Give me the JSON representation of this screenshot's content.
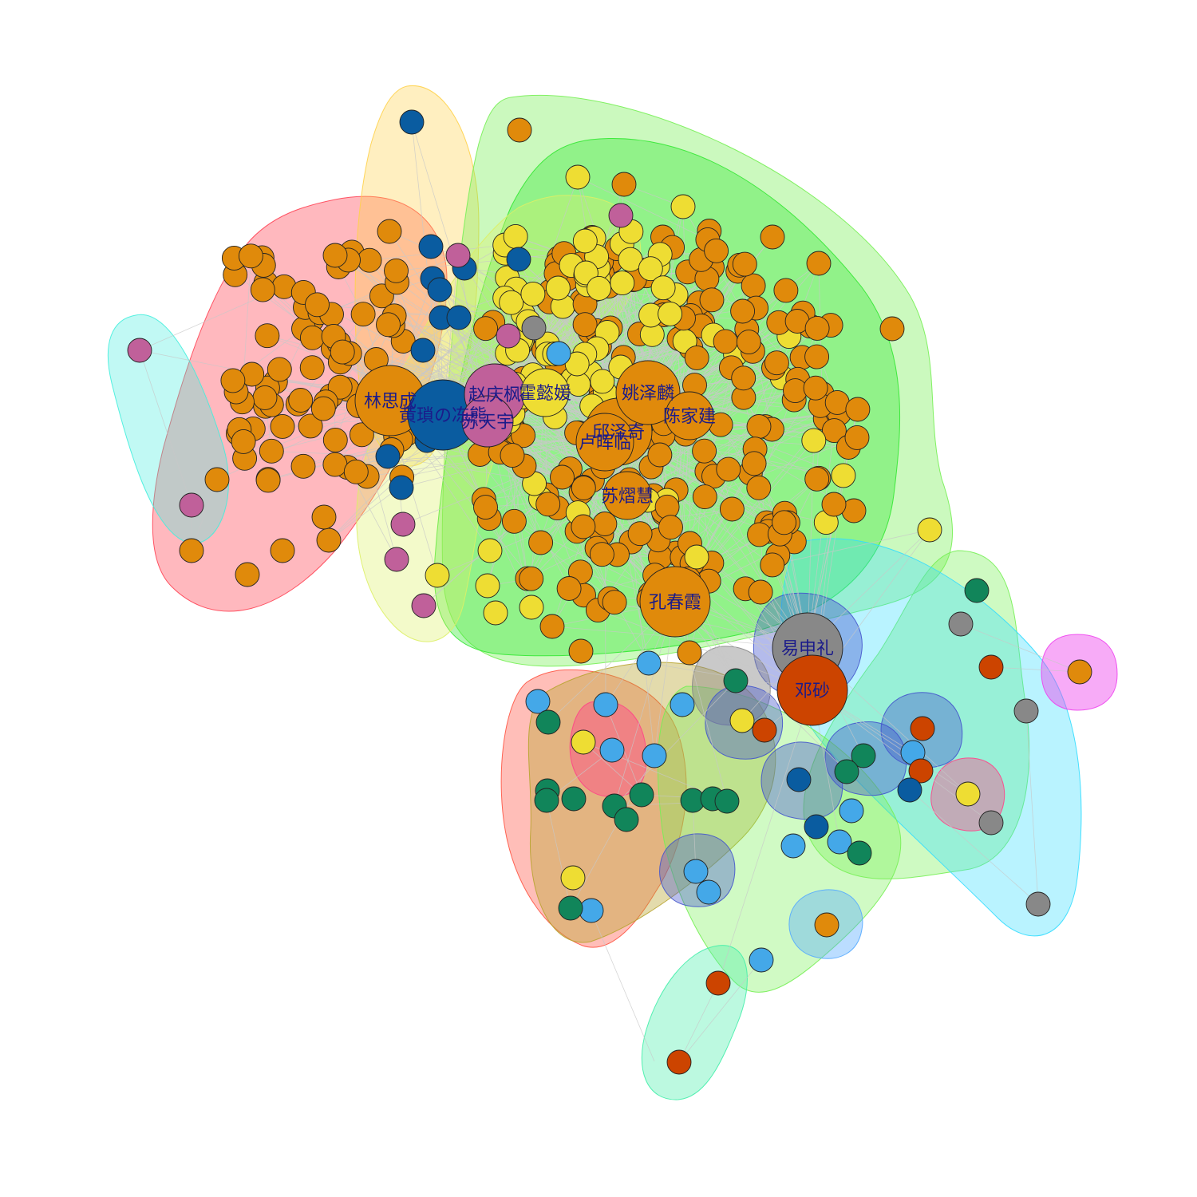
{
  "diagram": {
    "type": "network-graph",
    "palette": {
      "orange": "#E08A0B",
      "yellow": "#EEDD33",
      "dark_blue": "#0A5CA0",
      "magenta": "#C0609A",
      "gray": "#888888",
      "red_orange": "#CC4400",
      "dark_green": "#11855A",
      "light_blue": "#44A8E8",
      "edge": "#C8C8C8"
    },
    "communities": [
      {
        "name": "red",
        "color": "#FF4455"
      },
      {
        "name": "light-yellow",
        "color": "#FFD24A"
      },
      {
        "name": "cyan-left",
        "color": "#44EEDD"
      },
      {
        "name": "light-green",
        "color": "#77F055"
      },
      {
        "name": "green",
        "color": "#33E833"
      },
      {
        "name": "yellow-green",
        "color": "#DDF066"
      },
      {
        "name": "cyan-right",
        "color": "#33DDFF"
      },
      {
        "name": "magenta",
        "color": "#EE44EE"
      },
      {
        "name": "salmon",
        "color": "#FF5544"
      },
      {
        "name": "olive",
        "color": "#B8A430"
      },
      {
        "name": "pink",
        "color": "#FF4488"
      },
      {
        "name": "blue",
        "color": "#4455CC"
      },
      {
        "name": "mint",
        "color": "#44EEAA"
      },
      {
        "name": "sky",
        "color": "#55AAFF"
      }
    ],
    "labeled_nodes": [
      {
        "id": "lin-sicheng",
        "label": "林思成",
        "color": "orange"
      },
      {
        "id": "huang-hao",
        "label": "黄瑣の冻熊",
        "color": "dark_blue"
      },
      {
        "id": "zhao-qingfeng",
        "label": "赵庆枫",
        "color": "magenta"
      },
      {
        "id": "su-tianyu",
        "label": "苏天宇",
        "color": "magenta"
      },
      {
        "id": "huo-yiyuan",
        "label": "霍懿媛",
        "color": "yellow"
      },
      {
        "id": "yao-zelin",
        "label": "姚泽麟",
        "color": "orange"
      },
      {
        "id": "qiu-zeqi",
        "label": "邱泽奇",
        "color": "orange"
      },
      {
        "id": "lu-huilin",
        "label": "卢晖临",
        "color": "orange"
      },
      {
        "id": "chen-jiajian",
        "label": "陈家建",
        "color": "orange"
      },
      {
        "id": "su-xihui",
        "label": "苏熠慧",
        "color": "orange"
      },
      {
        "id": "kong-chunxia",
        "label": "孔春霞",
        "color": "orange"
      },
      {
        "id": "yi-shenli",
        "label": "易申礼",
        "color": "gray"
      },
      {
        "id": "deng-sha",
        "label": "邓砂",
        "color": "red_orange"
      }
    ]
  }
}
